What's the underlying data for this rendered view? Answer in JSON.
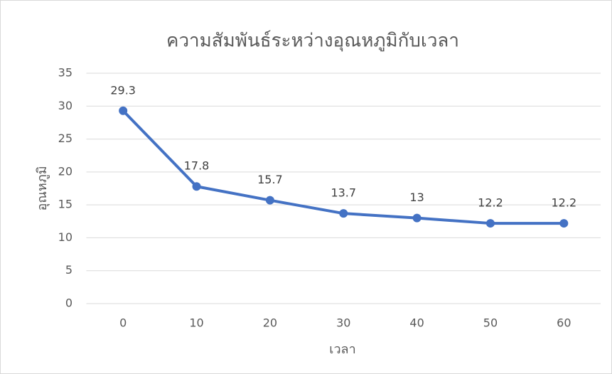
{
  "chart_data": {
    "type": "line",
    "title": "ความสัมพันธ์ระหว่างอุณหภูมิกับเวลา",
    "x_label": "เวลา",
    "y_label": "อุณหภูมิ",
    "categories": [
      "0",
      "10",
      "20",
      "30",
      "40",
      "50",
      "60"
    ],
    "series": [
      {
        "name": "อุณหภูมิ",
        "color": "#4472c4",
        "values": [
          29.3,
          17.8,
          15.7,
          13.7,
          13,
          12.2,
          12.2
        ]
      }
    ],
    "ylim": [
      0,
      35
    ],
    "yticks": [
      0,
      5,
      10,
      15,
      20,
      25,
      30,
      35
    ],
    "grid": true
  }
}
